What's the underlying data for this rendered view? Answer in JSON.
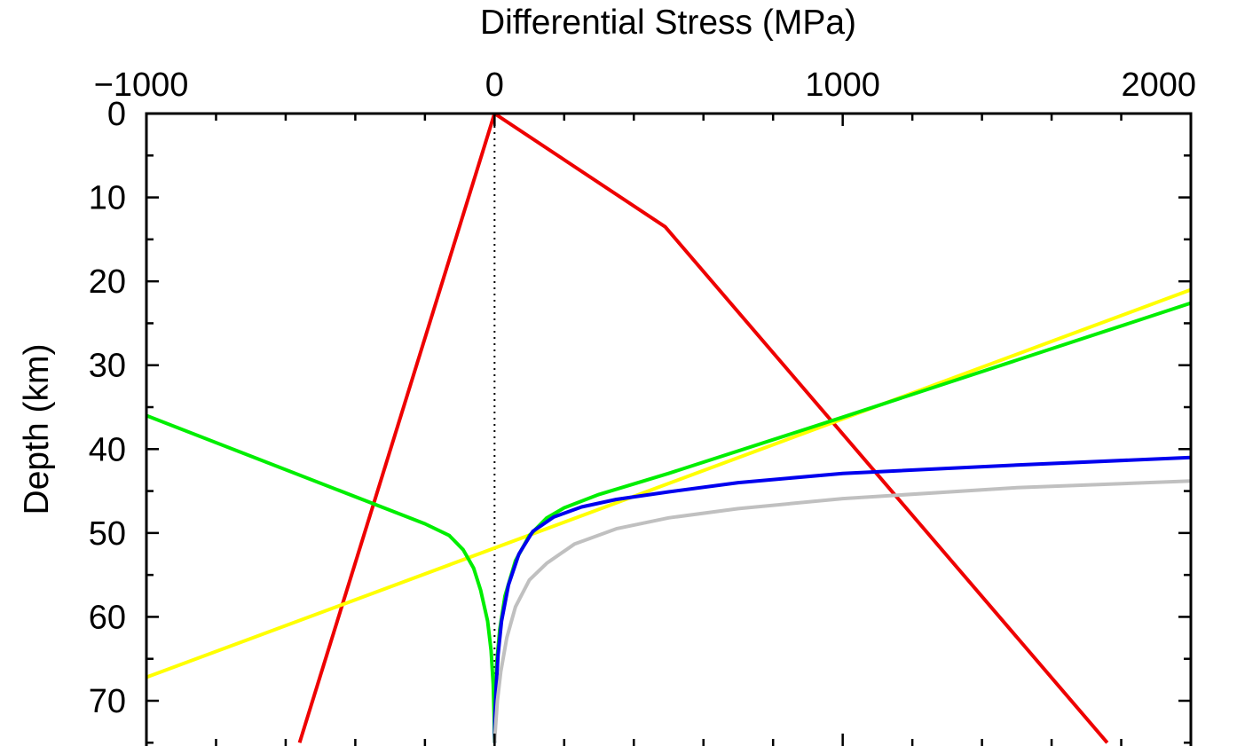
{
  "chart_data": {
    "type": "line",
    "title": "",
    "xlabel": "Differential Stress (MPa)",
    "ylabel": "Depth (km)",
    "x_axis_position": "top",
    "y_axis_inverted": true,
    "xlim": [
      -1000,
      2000
    ],
    "ylim": [
      0,
      75
    ],
    "x_ticks": [
      -1000,
      0,
      1000,
      2000
    ],
    "x_tick_labels": [
      "−1000",
      "0",
      "1000",
      "2000"
    ],
    "x_minor_step": 200,
    "y_ticks": [
      0,
      10,
      20,
      30,
      40,
      50,
      60,
      70
    ],
    "y_tick_labels": [
      "0",
      "10",
      "20",
      "30",
      "40",
      "50",
      "60",
      "70"
    ],
    "y_minor_step": 5,
    "grid": false,
    "legend": "none",
    "reference_lines": [
      {
        "orientation": "vertical",
        "x": 0,
        "style": "dotted",
        "color": "#000000"
      }
    ],
    "series": [
      {
        "color": "#ee0000",
        "points": [
          [
            0,
            0
          ],
          [
            -560,
            75
          ]
        ]
      },
      {
        "color": "#ee0000",
        "points": [
          [
            0,
            0
          ],
          [
            490,
            13.5
          ],
          [
            1760,
            75
          ]
        ]
      },
      {
        "color": "#ffff00",
        "points": [
          [
            2000,
            21
          ],
          [
            -1000,
            67.2
          ]
        ]
      },
      {
        "color": "#00ee00",
        "points": [
          [
            2000,
            22.6
          ],
          [
            1000,
            36.2
          ],
          [
            500,
            42.9
          ],
          [
            300,
            45.4
          ],
          [
            200,
            47
          ],
          [
            150,
            48.2
          ],
          [
            100,
            50.3
          ],
          [
            60,
            53.3
          ],
          [
            30,
            57.5
          ],
          [
            15,
            61.5
          ],
          [
            6,
            65.5
          ],
          [
            2,
            70
          ],
          [
            0,
            75
          ]
        ]
      },
      {
        "color": "#00ee00",
        "points": [
          [
            -1000,
            36
          ],
          [
            -200,
            48.9
          ],
          [
            -130,
            50.3
          ],
          [
            -90,
            52
          ],
          [
            -60,
            54.2
          ],
          [
            -40,
            56.8
          ],
          [
            -20,
            60.5
          ],
          [
            -10,
            64
          ],
          [
            -4,
            68
          ],
          [
            -1,
            72
          ],
          [
            0,
            75
          ]
        ]
      },
      {
        "color": "#0000ee",
        "points": [
          [
            2000,
            41
          ],
          [
            1500,
            41.9
          ],
          [
            1000,
            42.9
          ],
          [
            700,
            44
          ],
          [
            500,
            45.1
          ],
          [
            350,
            46
          ],
          [
            250,
            46.9
          ],
          [
            170,
            48.1
          ],
          [
            110,
            49.8
          ],
          [
            70,
            52.5
          ],
          [
            40,
            56.2
          ],
          [
            20,
            60.5
          ],
          [
            10,
            64.5
          ],
          [
            5,
            68
          ],
          [
            1,
            72
          ],
          [
            0,
            75
          ]
        ]
      },
      {
        "color": "#c0c0c0",
        "points": [
          [
            2000,
            43.8
          ],
          [
            1500,
            44.6
          ],
          [
            1000,
            45.9
          ],
          [
            700,
            47.1
          ],
          [
            500,
            48.2
          ],
          [
            350,
            49.5
          ],
          [
            230,
            51.3
          ],
          [
            150,
            53.6
          ],
          [
            100,
            55.6
          ],
          [
            60,
            58.8
          ],
          [
            35,
            62.5
          ],
          [
            18,
            66.5
          ],
          [
            8,
            70
          ],
          [
            3,
            73
          ],
          [
            0,
            75
          ]
        ]
      }
    ]
  }
}
